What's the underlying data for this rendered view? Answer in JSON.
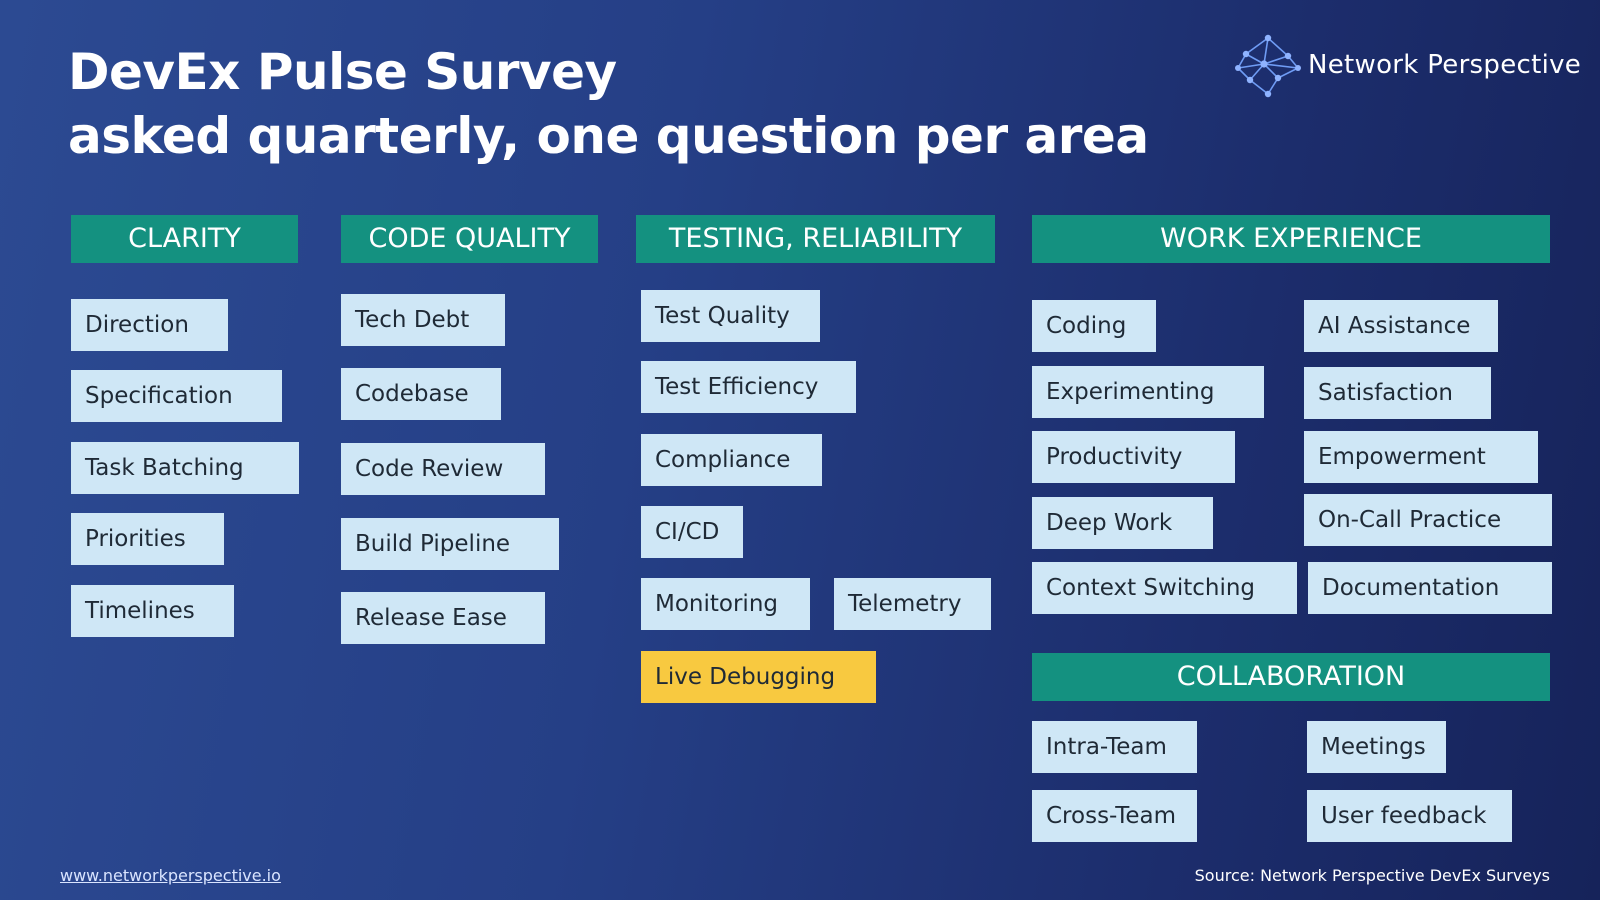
{
  "title": {
    "line1": "DevEx Pulse Survey",
    "line2": "asked quarterly, one question per area"
  },
  "brand": {
    "name": "Network Perspective",
    "logo_icon": "network-graph-icon"
  },
  "footer": {
    "website": "www.networkperspective.io",
    "source": "Source: Network Perspective DevEx Surveys"
  },
  "colors": {
    "header": "#149180",
    "item": "#cfe7f6",
    "highlight": "#f8c940"
  },
  "sections": {
    "clarity": {
      "title": "CLARITY",
      "items": [
        "Direction",
        "Specification",
        "Task Batching",
        "Priorities",
        "Timelines"
      ]
    },
    "code_quality": {
      "title": "CODE QUALITY",
      "items": [
        "Tech Debt",
        "Codebase",
        "Code Review",
        "Build Pipeline",
        "Release Ease"
      ]
    },
    "testing": {
      "title": "TESTING, RELIABILITY",
      "items": [
        "Test Quality",
        "Test Efficiency",
        "Compliance",
        "CI/CD",
        "Monitoring",
        "Telemetry",
        "Live Debugging"
      ]
    },
    "work_experience": {
      "title": "WORK EXPERIENCE",
      "items": [
        "Coding",
        "Experimenting",
        "Productivity",
        "Deep Work",
        "Context Switching",
        "AI Assistance",
        "Satisfaction",
        "Empowerment",
        "On-Call Practice",
        "Documentation"
      ]
    },
    "collaboration": {
      "title": "COLLABORATION",
      "items": [
        "Intra-Team",
        "Cross-Team",
        "Meetings",
        "User feedback"
      ]
    }
  }
}
